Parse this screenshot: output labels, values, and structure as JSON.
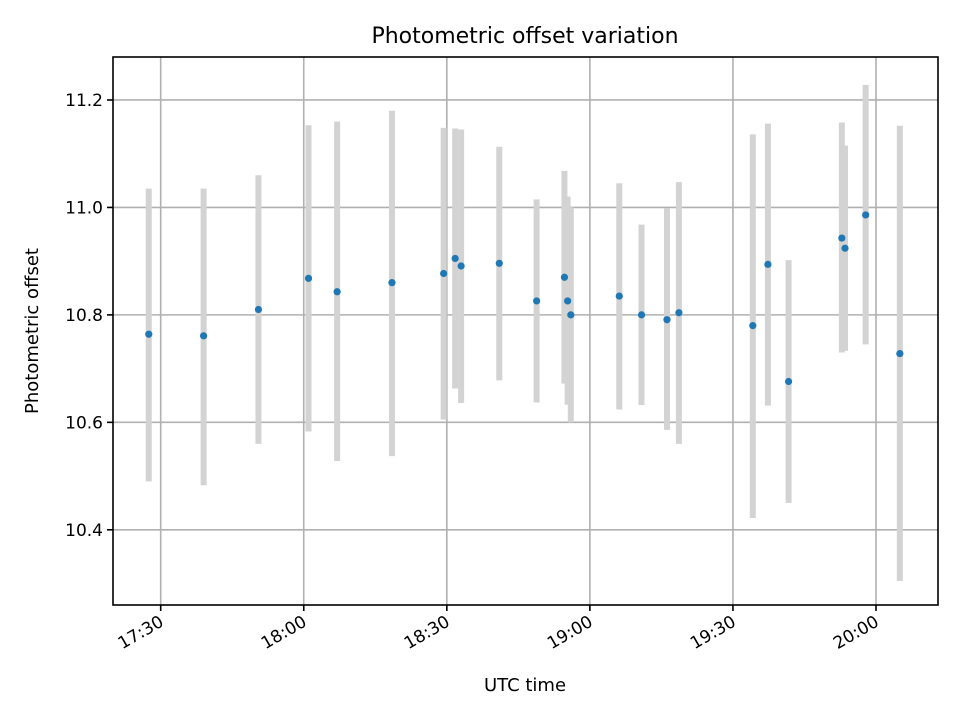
{
  "chart_data": {
    "type": "scatter",
    "title": "Photometric offset variation",
    "xlabel": "UTC time",
    "ylabel": "Photometric offset",
    "grid": true,
    "xlim": [
      "17:20",
      "20:13"
    ],
    "ylim": [
      10.26,
      11.28
    ],
    "xticks": [
      "17:30",
      "18:00",
      "18:30",
      "19:00",
      "19:30",
      "20:00"
    ],
    "yticks": [
      10.4,
      10.6,
      10.8,
      11.0,
      11.2
    ],
    "ytick_labels": [
      "10.4",
      "10.6",
      "10.8",
      "11.0",
      "11.2"
    ],
    "colors": {
      "point": "#1f77b4",
      "errorbar": "#d3d3d3"
    },
    "points": [
      {
        "x": "17:27:30",
        "y": 10.764,
        "ylow": 10.49,
        "yhigh": 11.035
      },
      {
        "x": "17:39:00",
        "y": 10.761,
        "ylow": 10.483,
        "yhigh": 11.035
      },
      {
        "x": "17:50:30",
        "y": 10.81,
        "ylow": 10.56,
        "yhigh": 11.06
      },
      {
        "x": "18:01:00",
        "y": 10.868,
        "ylow": 10.583,
        "yhigh": 11.153
      },
      {
        "x": "18:07:00",
        "y": 10.843,
        "ylow": 10.528,
        "yhigh": 11.16
      },
      {
        "x": "18:18:30",
        "y": 10.86,
        "ylow": 10.537,
        "yhigh": 11.18
      },
      {
        "x": "18:29:20",
        "y": 10.877,
        "ylow": 10.605,
        "yhigh": 11.148
      },
      {
        "x": "18:31:45",
        "y": 10.905,
        "ylow": 10.663,
        "yhigh": 11.147
      },
      {
        "x": "18:33:00",
        "y": 10.891,
        "ylow": 10.636,
        "yhigh": 11.145
      },
      {
        "x": "18:41:00",
        "y": 10.896,
        "ylow": 10.678,
        "yhigh": 11.113
      },
      {
        "x": "18:48:50",
        "y": 10.826,
        "ylow": 10.637,
        "yhigh": 11.015
      },
      {
        "x": "18:54:40",
        "y": 10.87,
        "ylow": 10.672,
        "yhigh": 11.068
      },
      {
        "x": "18:55:20",
        "y": 10.826,
        "ylow": 10.633,
        "yhigh": 11.02
      },
      {
        "x": "18:56:00",
        "y": 10.8,
        "ylow": 10.6,
        "yhigh": 11.0
      },
      {
        "x": "19:06:10",
        "y": 10.835,
        "ylow": 10.624,
        "yhigh": 11.045
      },
      {
        "x": "19:10:50",
        "y": 10.8,
        "ylow": 10.632,
        "yhigh": 10.968
      },
      {
        "x": "19:16:10",
        "y": 10.791,
        "ylow": 10.586,
        "yhigh": 10.999
      },
      {
        "x": "19:18:40",
        "y": 10.804,
        "ylow": 10.56,
        "yhigh": 11.047
      },
      {
        "x": "19:34:10",
        "y": 10.78,
        "ylow": 10.422,
        "yhigh": 11.136
      },
      {
        "x": "19:37:20",
        "y": 10.894,
        "ylow": 10.631,
        "yhigh": 11.156
      },
      {
        "x": "19:41:40",
        "y": 10.676,
        "ylow": 10.45,
        "yhigh": 10.902
      },
      {
        "x": "19:52:50",
        "y": 10.943,
        "ylow": 10.73,
        "yhigh": 11.158
      },
      {
        "x": "19:53:30",
        "y": 10.924,
        "ylow": 10.733,
        "yhigh": 11.115
      },
      {
        "x": "19:57:50",
        "y": 10.986,
        "ylow": 10.745,
        "yhigh": 11.228
      },
      {
        "x": "20:05:00",
        "y": 10.728,
        "ylow": 10.305,
        "yhigh": 11.152
      }
    ]
  }
}
